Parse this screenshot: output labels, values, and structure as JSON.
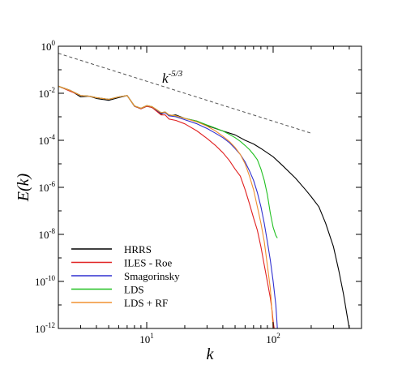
{
  "chart_data": {
    "type": "line",
    "title": "",
    "xlabel": "k",
    "ylabel": "E(k)",
    "xscale": "log",
    "yscale": "log",
    "xlim": [
      2,
      500
    ],
    "ylim": [
      1e-12,
      1
    ],
    "x_ticks": [
      {
        "value": 10,
        "base": "10",
        "exp": "1"
      },
      {
        "value": 100,
        "base": "10",
        "exp": "2"
      }
    ],
    "y_ticks": [
      {
        "value": 1,
        "base": "10",
        "exp": "0"
      },
      {
        "value": 0.01,
        "base": "10",
        "exp": "-2"
      },
      {
        "value": 0.0001,
        "base": "10",
        "exp": "-4"
      },
      {
        "value": 1e-06,
        "base": "10",
        "exp": "-6"
      },
      {
        "value": 1e-08,
        "base": "10",
        "exp": "-8"
      },
      {
        "value": 1e-10,
        "base": "10",
        "exp": "-10"
      },
      {
        "value": 1e-12,
        "base": "10",
        "exp": "-12"
      }
    ],
    "reference_line": {
      "label_base": "k",
      "label_exp": "-5/3",
      "x": [
        2,
        200
      ],
      "y": [
        0.5,
        0.0002
      ],
      "color": "#555555"
    },
    "legend_position": "bottom-left",
    "series": [
      {
        "name": "HRRS",
        "color": "#000000",
        "x": [
          2,
          2.5,
          3,
          3.5,
          4,
          5,
          6,
          7,
          8,
          9,
          10,
          11,
          12,
          13,
          14,
          15,
          17,
          20,
          25,
          30,
          40,
          50,
          60,
          70,
          80,
          100,
          120,
          150,
          180,
          200,
          230,
          260,
          300,
          330,
          360,
          400,
          420
        ],
        "y": [
          0.02,
          0.013,
          0.007,
          0.0075,
          0.006,
          0.005,
          0.0065,
          0.008,
          0.0028,
          0.0022,
          0.0028,
          0.0025,
          0.0018,
          0.0013,
          0.0016,
          0.0011,
          0.0012,
          0.00085,
          0.00065,
          0.00042,
          0.00025,
          0.00017,
          0.0001,
          7e-05,
          4.5e-05,
          2e-05,
          8e-06,
          2.5e-06,
          8e-07,
          4e-07,
          1.5e-07,
          3e-08,
          3e-09,
          3e-10,
          3e-11,
          1e-12,
          1e-12
        ]
      },
      {
        "name": "ILES - Roe",
        "color": "#e02020",
        "x": [
          2,
          2.5,
          3,
          3.5,
          4,
          5,
          6,
          7,
          8,
          9,
          10,
          11,
          12,
          13,
          14,
          15,
          17,
          20,
          25,
          30,
          35,
          40,
          45,
          50,
          55,
          60,
          65,
          70,
          75,
          80,
          85,
          90,
          95,
          98,
          100,
          102
        ],
        "y": [
          0.02,
          0.012,
          0.008,
          0.0075,
          0.0065,
          0.0055,
          0.007,
          0.008,
          0.0028,
          0.0022,
          0.0028,
          0.0025,
          0.0017,
          0.0012,
          0.0012,
          0.0008,
          0.0007,
          0.0005,
          0.00025,
          0.00012,
          6e-05,
          3e-05,
          1.4e-05,
          6e-06,
          3e-06,
          8e-07,
          2e-07,
          5e-08,
          1.5e-08,
          3e-09,
          5e-10,
          1e-10,
          2e-11,
          6e-12,
          2e-12,
          1e-12
        ]
      },
      {
        "name": "Smagorinsky",
        "color": "#3030d0",
        "x": [
          2,
          2.5,
          3,
          3.5,
          4,
          5,
          6,
          7,
          8,
          9,
          10,
          11,
          12,
          13,
          14,
          15,
          17,
          20,
          25,
          30,
          35,
          40,
          45,
          50,
          55,
          60,
          65,
          70,
          75,
          80,
          85,
          90,
          95,
          100,
          105,
          108
        ],
        "y": [
          0.02,
          0.013,
          0.008,
          0.0075,
          0.0065,
          0.0055,
          0.007,
          0.008,
          0.0029,
          0.0023,
          0.003,
          0.0027,
          0.0019,
          0.0014,
          0.0015,
          0.0011,
          0.001,
          0.00075,
          0.0005,
          0.00032,
          0.0002,
          0.00013,
          8e-05,
          4.5e-05,
          2.5e-05,
          1.2e-05,
          5e-06,
          2e-06,
          6e-07,
          1.5e-07,
          3e-08,
          5e-09,
          8e-10,
          1e-10,
          1e-11,
          1e-12
        ]
      },
      {
        "name": "LDS",
        "color": "#20c020",
        "x": [
          2,
          2.5,
          3,
          3.5,
          4,
          5,
          6,
          7,
          8,
          9,
          10,
          11,
          12,
          13,
          14,
          15,
          17,
          20,
          25,
          30,
          35,
          40,
          45,
          50,
          55,
          60,
          65,
          70,
          75,
          80,
          85,
          90,
          95,
          100,
          105,
          108
        ],
        "y": [
          0.02,
          0.013,
          0.008,
          0.0075,
          0.0065,
          0.0055,
          0.007,
          0.008,
          0.0029,
          0.0023,
          0.003,
          0.0027,
          0.002,
          0.0015,
          0.0016,
          0.0012,
          0.0011,
          0.00085,
          0.00065,
          0.00045,
          0.00033,
          0.00025,
          0.00018,
          0.00013,
          9e-05,
          6e-05,
          4e-05,
          2.5e-05,
          1.5e-05,
          6e-06,
          2e-06,
          5e-07,
          8e-08,
          2e-08,
          9e-09,
          7e-09
        ]
      },
      {
        "name": "LDS + RF",
        "color": "#f09030",
        "x": [
          2,
          2.5,
          3,
          3.5,
          4,
          5,
          6,
          7,
          8,
          9,
          10,
          11,
          12,
          13,
          14,
          15,
          17,
          20,
          25,
          30,
          35,
          40,
          45,
          50,
          55,
          60,
          65,
          70,
          75,
          80,
          85,
          90,
          95,
          98,
          100
        ],
        "y": [
          0.02,
          0.013,
          0.008,
          0.0075,
          0.0065,
          0.0055,
          0.007,
          0.008,
          0.0029,
          0.0023,
          0.003,
          0.0027,
          0.002,
          0.0015,
          0.0016,
          0.0012,
          0.0011,
          0.00085,
          0.0006,
          0.0004,
          0.00025,
          0.00015,
          9e-05,
          5e-05,
          2.5e-05,
          1e-05,
          3e-06,
          8e-07,
          1.5e-07,
          3e-08,
          5e-09,
          5e-10,
          5e-11,
          5e-12,
          1e-12
        ]
      }
    ]
  }
}
